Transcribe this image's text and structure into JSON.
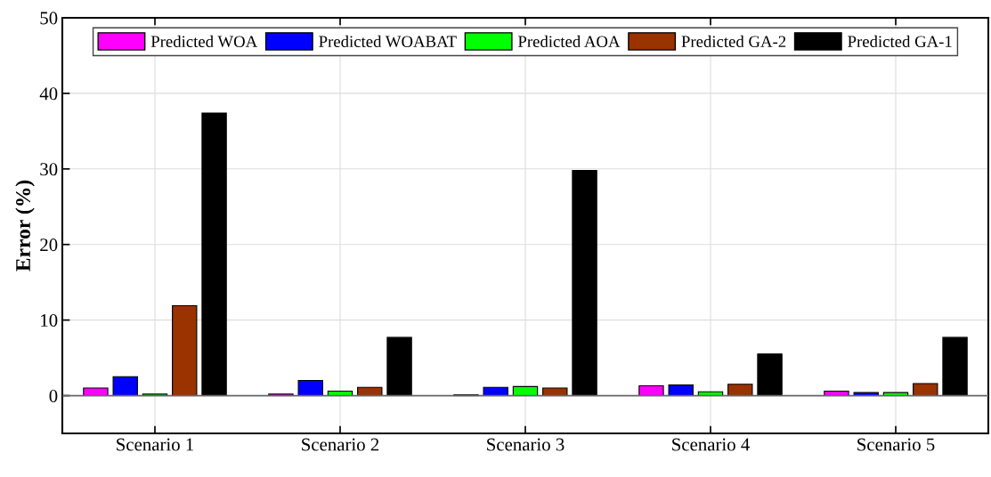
{
  "chart_data": {
    "type": "bar",
    "ylabel": "Error (%)",
    "categories": [
      "Scenario 1",
      "Scenario 2",
      "Scenario 3",
      "Scenario 4",
      "Scenario 5"
    ],
    "series": [
      {
        "name": "Predicted WOA",
        "color": "#ff00ff",
        "values": [
          1.0,
          0.2,
          0.1,
          1.3,
          0.6
        ]
      },
      {
        "name": "Predicted WOABAT",
        "color": "#0000ff",
        "values": [
          2.5,
          2.0,
          1.1,
          1.4,
          0.4
        ]
      },
      {
        "name": "Predicted AOA",
        "color": "#00ff00",
        "values": [
          0.2,
          0.6,
          1.2,
          0.5,
          0.4
        ]
      },
      {
        "name": "Predicted GA-2",
        "color": "#993300",
        "values": [
          11.9,
          1.1,
          1.0,
          1.5,
          1.6
        ]
      },
      {
        "name": "Predicted GA-1",
        "color": "#000000",
        "values": [
          37.4,
          7.7,
          29.8,
          5.5,
          7.7
        ]
      }
    ],
    "ylim": [
      -5,
      50
    ],
    "yticks": [
      0,
      10,
      20,
      30,
      40,
      50
    ],
    "grid": true,
    "legend": "top",
    "ref_lines": [
      {
        "axis": "y",
        "value": 0,
        "color": "#666666"
      }
    ]
  }
}
